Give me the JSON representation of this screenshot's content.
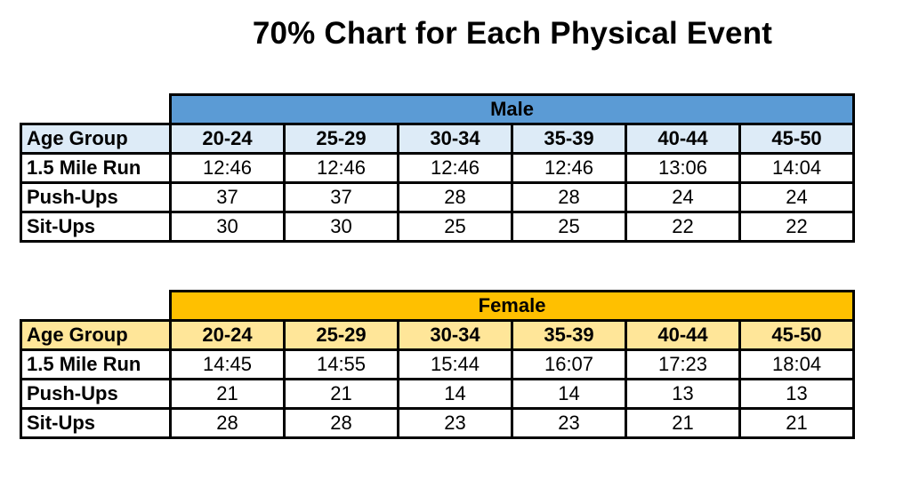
{
  "title": "70% Chart for Each Physical Event",
  "tables": [
    {
      "gender": "Male",
      "age_label": "Age Group",
      "age_groups": [
        "20-24",
        "25-29",
        "30-34",
        "35-39",
        "40-44",
        "45-50"
      ],
      "rows": [
        {
          "label": "1.5 Mile Run",
          "values": [
            "12:46",
            "12:46",
            "12:46",
            "12:46",
            "13:06",
            "14:04"
          ]
        },
        {
          "label": "Push-Ups",
          "values": [
            "37",
            "37",
            "28",
            "28",
            "24",
            "24"
          ]
        },
        {
          "label": "Sit-Ups",
          "values": [
            "30",
            "30",
            "25",
            "25",
            "22",
            "22"
          ]
        }
      ],
      "colors": {
        "header": "#5b9bd5",
        "age_row": "#ddebf7"
      }
    },
    {
      "gender": "Female",
      "age_label": "Age Group",
      "age_groups": [
        "20-24",
        "25-29",
        "30-34",
        "35-39",
        "40-44",
        "45-50"
      ],
      "rows": [
        {
          "label": "1.5 Mile Run",
          "values": [
            "14:45",
            "14:55",
            "15:44",
            "16:07",
            "17:23",
            "18:04"
          ]
        },
        {
          "label": "Push-Ups",
          "values": [
            "21",
            "21",
            "14",
            "14",
            "13",
            "13"
          ]
        },
        {
          "label": "Sit-Ups",
          "values": [
            "28",
            "28",
            "23",
            "23",
            "21",
            "21"
          ]
        }
      ],
      "colors": {
        "header": "#ffc000",
        "age_row": "#ffe699"
      }
    }
  ]
}
